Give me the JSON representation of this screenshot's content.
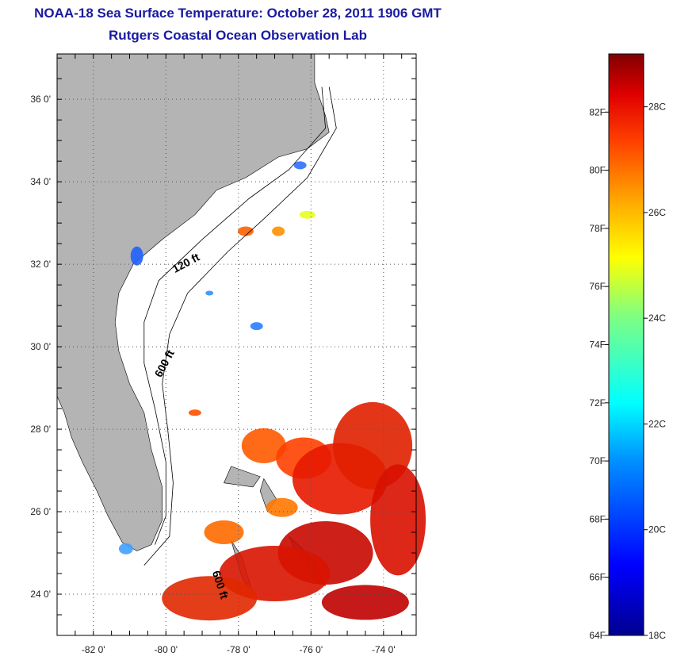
{
  "title": {
    "line1": "NOAA-18 Sea Surface Temperature:  October 28, 2011 1906 GMT",
    "line2": "Rutgers Coastal Ocean Observation Lab"
  },
  "colors": {
    "title": "#1a1aa0",
    "land": "#b4b4b4",
    "ocean": "#ffffff",
    "grid": "#555555"
  },
  "map": {
    "lon_range": [
      -83,
      -73.1
    ],
    "lat_range": [
      23,
      37.1
    ],
    "lat_ticks": [
      {
        "value": 36,
        "label": "36 0'"
      },
      {
        "value": 34,
        "label": "34 0'"
      },
      {
        "value": 32,
        "label": "32 0'"
      },
      {
        "value": 30,
        "label": "30 0'"
      },
      {
        "value": 28,
        "label": "28 0'"
      },
      {
        "value": 26,
        "label": "26 0'"
      },
      {
        "value": 24,
        "label": "24 0'"
      }
    ],
    "lon_ticks": [
      {
        "value": -82,
        "label": "-82 0'"
      },
      {
        "value": -80,
        "label": "-80 0'"
      },
      {
        "value": -78,
        "label": "-78 0'"
      },
      {
        "value": -76,
        "label": "-76 0'"
      },
      {
        "value": -74,
        "label": "-74 0'"
      }
    ],
    "contour_labels": [
      "120 ft",
      "600 ft",
      "600 ft"
    ]
  },
  "colorbar": {
    "range_f": [
      64,
      84
    ],
    "range_c": [
      18,
      29
    ],
    "f_labels": [
      "82F",
      "80F",
      "78F",
      "76F",
      "74F",
      "72F",
      "70F",
      "68F",
      "66F",
      "64F"
    ],
    "c_labels": [
      "28C",
      "26C",
      "24C",
      "22C",
      "20C",
      "18C"
    ]
  }
}
